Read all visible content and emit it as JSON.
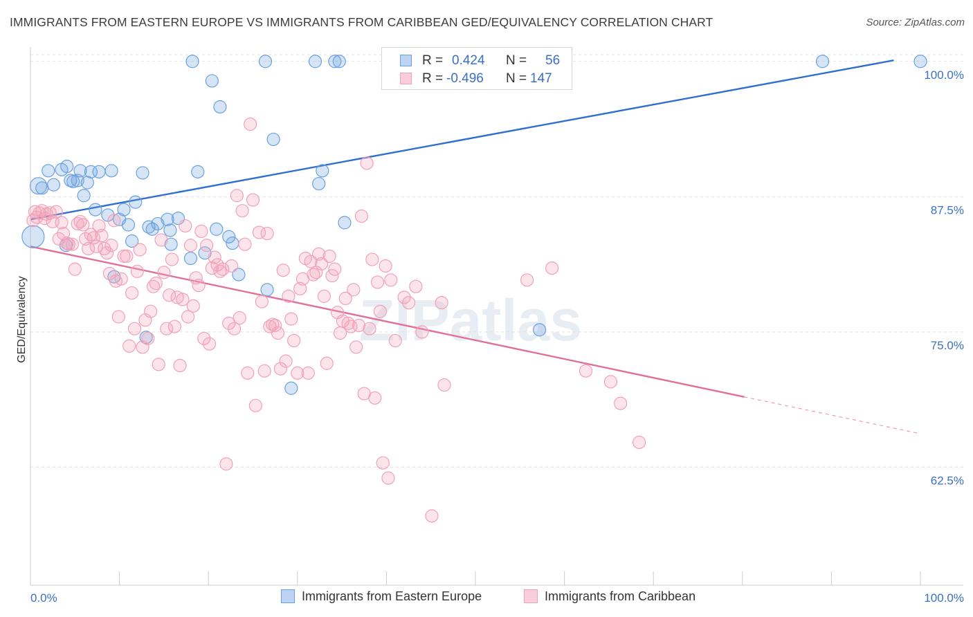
{
  "title": "IMMIGRANTS FROM EASTERN EUROPE VS IMMIGRANTS FROM CARIBBEAN GED/EQUIVALENCY CORRELATION CHART",
  "source": "Source: ZipAtlas.com",
  "watermark": "ZIPatlas",
  "colors": {
    "blue": "#6aa0e0",
    "blue_line": "#2f6fcf",
    "pink": "#f2a0b8",
    "pink_line": "#e0709a",
    "tick_text": "#3a6fc4"
  },
  "legend": {
    "rows": [
      {
        "r_label": "R =",
        "r_value": "0.424",
        "n_label": "N =",
        "n_value": "56"
      },
      {
        "r_label": "R =",
        "r_value": "-0.496",
        "n_label": "N =",
        "n_value": "147"
      }
    ]
  },
  "bottom_legend": {
    "series1": "Immigrants from Eastern Europe",
    "series2": "Immigrants from Caribbean"
  },
  "chart_data": {
    "type": "scatter",
    "xlabel": "",
    "ylabel": "GED/Equivalency",
    "xlim": [
      0,
      100
    ],
    "ylim": [
      51.6,
      101.2
    ],
    "x_tick_labels": [
      "0.0%",
      "100.0%"
    ],
    "y_ticks": [
      62.5,
      75.0,
      87.5,
      100.0
    ],
    "y_tick_labels": [
      "62.5%",
      "75.0%",
      "87.5%",
      "100.0%"
    ],
    "grid": "horizontal dashed",
    "legend_position": "top-center",
    "series": [
      {
        "name": "Immigrants from Eastern Europe",
        "trend": {
          "x": [
            0,
            97
          ],
          "y": [
            85.4,
            100.1
          ]
        },
        "points": [
          [
            0.3,
            83.8
          ],
          [
            0.9,
            88.5
          ],
          [
            1.3,
            88.3
          ],
          [
            2.0,
            89.9
          ],
          [
            2.6,
            88.6
          ],
          [
            3.5,
            90.0
          ],
          [
            4.0,
            83.0
          ],
          [
            4.1,
            90.3
          ],
          [
            4.5,
            89.0
          ],
          [
            4.8,
            88.9
          ],
          [
            5.3,
            89.0
          ],
          [
            5.6,
            89.9
          ],
          [
            6.0,
            87.6
          ],
          [
            6.4,
            88.8
          ],
          [
            6.8,
            89.8
          ],
          [
            7.3,
            86.3
          ],
          [
            7.7,
            89.8
          ],
          [
            8.7,
            85.8
          ],
          [
            9.1,
            89.9
          ],
          [
            9.4,
            80.1
          ],
          [
            10.0,
            85.4
          ],
          [
            10.5,
            86.3
          ],
          [
            11.0,
            84.9
          ],
          [
            11.4,
            83.4
          ],
          [
            11.8,
            87.0
          ],
          [
            12.6,
            89.7
          ],
          [
            13.0,
            74.5
          ],
          [
            13.3,
            84.7
          ],
          [
            13.7,
            84.5
          ],
          [
            14.3,
            85.0
          ],
          [
            15.4,
            85.4
          ],
          [
            15.7,
            84.4
          ],
          [
            15.8,
            83.1
          ],
          [
            16.6,
            85.5
          ],
          [
            18.0,
            81.8
          ],
          [
            18.2,
            100.0
          ],
          [
            18.8,
            89.8
          ],
          [
            19.6,
            82.3
          ],
          [
            20.4,
            98.2
          ],
          [
            20.9,
            84.5
          ],
          [
            21.3,
            95.8
          ],
          [
            22.3,
            83.8
          ],
          [
            22.7,
            83.2
          ],
          [
            23.4,
            80.3
          ],
          [
            26.4,
            100.0
          ],
          [
            26.6,
            78.9
          ],
          [
            27.3,
            92.8
          ],
          [
            29.3,
            69.8
          ],
          [
            32.0,
            100.0
          ],
          [
            32.4,
            88.7
          ],
          [
            32.8,
            89.9
          ],
          [
            34.2,
            100.0
          ],
          [
            34.7,
            100.0
          ],
          [
            35.3,
            85.1
          ],
          [
            57.2,
            75.2
          ],
          [
            89.0,
            100.0
          ],
          [
            100.0,
            100.0
          ]
        ]
      },
      {
        "name": "Immigrants from Caribbean",
        "trend": {
          "x": [
            0,
            80.2
          ],
          "y": [
            82.9,
            69.0
          ]
        },
        "trend_extension": {
          "x": [
            80.2,
            100
          ],
          "y": [
            69.0,
            65.6
          ]
        },
        "points": [
          [
            0.3,
            85.3
          ],
          [
            0.5,
            86.1
          ],
          [
            0.7,
            85.6
          ],
          [
            1.0,
            86.0
          ],
          [
            1.3,
            86.2
          ],
          [
            1.6,
            85.5
          ],
          [
            1.8,
            85.9
          ],
          [
            2.2,
            86.0
          ],
          [
            2.5,
            85.2
          ],
          [
            2.9,
            86.1
          ],
          [
            3.2,
            83.6
          ],
          [
            3.5,
            85.1
          ],
          [
            3.7,
            84.1
          ],
          [
            4.1,
            83.2
          ],
          [
            4.3,
            83.1
          ],
          [
            4.7,
            83.1
          ],
          [
            5.0,
            80.8
          ],
          [
            5.3,
            85.0
          ],
          [
            5.6,
            85.2
          ],
          [
            5.9,
            84.9
          ],
          [
            6.2,
            83.6
          ],
          [
            6.5,
            82.7
          ],
          [
            6.8,
            84.0
          ],
          [
            7.1,
            83.7
          ],
          [
            7.4,
            82.9
          ],
          [
            7.7,
            84.8
          ],
          [
            8.0,
            83.9
          ],
          [
            8.3,
            82.7
          ],
          [
            8.6,
            82.3
          ],
          [
            8.9,
            80.4
          ],
          [
            9.1,
            83.0
          ],
          [
            9.4,
            85.3
          ],
          [
            9.6,
            79.7
          ],
          [
            9.9,
            76.4
          ],
          [
            10.2,
            79.9
          ],
          [
            10.5,
            82.0
          ],
          [
            10.8,
            82.0
          ],
          [
            11.1,
            73.7
          ],
          [
            11.4,
            78.6
          ],
          [
            11.7,
            75.3
          ],
          [
            12.0,
            80.6
          ],
          [
            12.3,
            82.6
          ],
          [
            12.6,
            73.6
          ],
          [
            12.9,
            76.1
          ],
          [
            13.2,
            74.4
          ],
          [
            13.5,
            76.9
          ],
          [
            13.8,
            79.2
          ],
          [
            14.1,
            79.5
          ],
          [
            14.4,
            72.0
          ],
          [
            14.7,
            83.5
          ],
          [
            15.0,
            80.5
          ],
          [
            15.3,
            75.3
          ],
          [
            15.6,
            78.4
          ],
          [
            15.9,
            81.7
          ],
          [
            16.2,
            75.5
          ],
          [
            16.5,
            78.2
          ],
          [
            16.8,
            71.9
          ],
          [
            17.1,
            78.0
          ],
          [
            17.4,
            84.8
          ],
          [
            17.7,
            76.4
          ],
          [
            18.0,
            83.0
          ],
          [
            18.3,
            77.4
          ],
          [
            18.6,
            80.0
          ],
          [
            18.9,
            79.3
          ],
          [
            19.2,
            84.3
          ],
          [
            19.5,
            74.4
          ],
          [
            19.8,
            83.0
          ],
          [
            20.1,
            73.9
          ],
          [
            20.4,
            80.9
          ],
          [
            20.7,
            81.9
          ],
          [
            21.0,
            81.2
          ],
          [
            21.3,
            80.6
          ],
          [
            21.6,
            80.8
          ],
          [
            22.0,
            62.8
          ],
          [
            22.3,
            75.8
          ],
          [
            22.6,
            81.1
          ],
          [
            22.9,
            75.3
          ],
          [
            23.2,
            87.6
          ],
          [
            23.5,
            76.3
          ],
          [
            23.8,
            86.2
          ],
          [
            24.1,
            83.1
          ],
          [
            24.4,
            71.2
          ],
          [
            24.7,
            94.2
          ],
          [
            25.0,
            87.2
          ],
          [
            25.3,
            68.2
          ],
          [
            25.7,
            84.2
          ],
          [
            26.0,
            77.8
          ],
          [
            26.3,
            71.4
          ],
          [
            26.6,
            84.1
          ],
          [
            26.9,
            75.5
          ],
          [
            27.2,
            75.7
          ],
          [
            27.5,
            75.6
          ],
          [
            27.8,
            74.9
          ],
          [
            28.1,
            71.6
          ],
          [
            28.4,
            80.7
          ],
          [
            28.7,
            72.3
          ],
          [
            29.0,
            78.3
          ],
          [
            29.3,
            76.2
          ],
          [
            29.6,
            74.2
          ],
          [
            30.0,
            71.2
          ],
          [
            30.3,
            79.0
          ],
          [
            30.6,
            79.9
          ],
          [
            30.9,
            81.8
          ],
          [
            31.2,
            71.2
          ],
          [
            31.5,
            81.5
          ],
          [
            31.8,
            80.3
          ],
          [
            32.1,
            80.5
          ],
          [
            32.4,
            82.2
          ],
          [
            32.7,
            81.3
          ],
          [
            33.0,
            78.3
          ],
          [
            33.3,
            72.1
          ],
          [
            33.6,
            82.0
          ],
          [
            33.9,
            80.2
          ],
          [
            34.2,
            80.8
          ],
          [
            34.5,
            76.8
          ],
          [
            34.8,
            74.9
          ],
          [
            35.1,
            76.0
          ],
          [
            35.4,
            78.1
          ],
          [
            35.7,
            75.8
          ],
          [
            36.0,
            75.5
          ],
          [
            36.3,
            78.9
          ],
          [
            36.6,
            73.6
          ],
          [
            36.9,
            75.6
          ],
          [
            37.2,
            85.7
          ],
          [
            37.5,
            69.3
          ],
          [
            37.8,
            90.6
          ],
          [
            38.1,
            75.3
          ],
          [
            38.4,
            81.7
          ],
          [
            38.7,
            68.9
          ],
          [
            39.0,
            79.6
          ],
          [
            39.3,
            76.9
          ],
          [
            39.6,
            62.9
          ],
          [
            39.9,
            81.1
          ],
          [
            40.2,
            61.5
          ],
          [
            40.5,
            79.8
          ],
          [
            41.0,
            74.2
          ],
          [
            42.0,
            78.2
          ],
          [
            42.5,
            77.7
          ],
          [
            43.3,
            79.2
          ],
          [
            44.0,
            75.0
          ],
          [
            45.1,
            58.0
          ],
          [
            46.2,
            77.7
          ],
          [
            46.5,
            70.1
          ],
          [
            55.8,
            79.8
          ],
          [
            58.6,
            80.9
          ],
          [
            62.4,
            71.4
          ],
          [
            65.2,
            70.4
          ],
          [
            66.3,
            68.4
          ],
          [
            68.4,
            64.8
          ]
        ]
      }
    ]
  }
}
